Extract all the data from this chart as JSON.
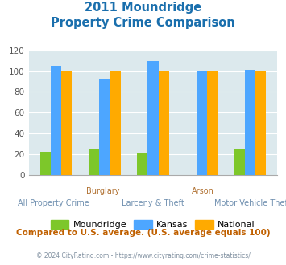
{
  "title_line1": "2011 Moundridge",
  "title_line2": "Property Crime Comparison",
  "groups": [
    "All Property Crime",
    "Burglary",
    "Larceny & Theft",
    "Arson",
    "Motor Vehicle Theft"
  ],
  "group_labels_top": [
    "",
    "Burglary",
    "",
    "Arson",
    ""
  ],
  "group_labels_bottom": [
    "All Property Crime",
    "",
    "Larceny & Theft",
    "",
    "Motor Vehicle Theft"
  ],
  "moundridge": [
    22,
    25,
    21,
    0,
    25
  ],
  "kansas": [
    105,
    93,
    110,
    100,
    101
  ],
  "national": [
    100,
    100,
    100,
    100,
    100
  ],
  "color_moundridge": "#7dc72a",
  "color_kansas": "#4da6ff",
  "color_national": "#ffaa00",
  "ylim": [
    0,
    120
  ],
  "yticks": [
    0,
    20,
    40,
    60,
    80,
    100,
    120
  ],
  "bg_color": "#dce9ed",
  "title_color": "#1a6fad",
  "label_color_top": "#b07030",
  "label_color_bottom": "#7090b0",
  "footer_text": "Compared to U.S. average. (U.S. average equals 100)",
  "copyright_text": "© 2024 CityRating.com - https://www.cityrating.com/crime-statistics/",
  "footer_color": "#c06000",
  "copyright_color": "#8090a0"
}
